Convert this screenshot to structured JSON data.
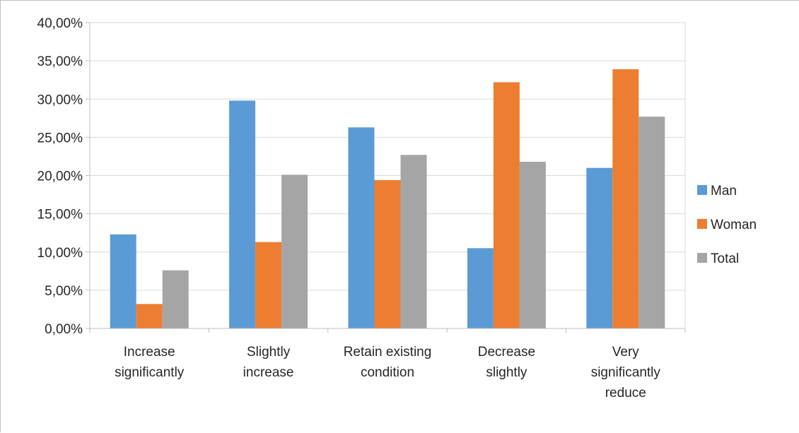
{
  "chart_data": {
    "type": "bar",
    "categories": [
      [
        "Increase",
        "significantly"
      ],
      [
        "Slightly",
        "increase"
      ],
      [
        "Retain existing",
        "condition"
      ],
      [
        "Decrease",
        "slightly"
      ],
      [
        "Very",
        "significantly",
        "reduce"
      ]
    ],
    "series": [
      {
        "name": "Man",
        "color": "#5b9bd5",
        "values": [
          12.3,
          29.8,
          26.3,
          10.5,
          21.0
        ]
      },
      {
        "name": "Woman",
        "color": "#ed7d31",
        "values": [
          3.2,
          11.3,
          19.4,
          32.2,
          33.9
        ]
      },
      {
        "name": "Total",
        "color": "#a5a5a5",
        "values": [
          7.6,
          20.1,
          22.7,
          21.8,
          27.7
        ]
      }
    ],
    "ylim": [
      0,
      40
    ],
    "ytick_step": 5,
    "ytick_labels": [
      "0,00%",
      "5,00%",
      "10,00%",
      "15,00%",
      "20,00%",
      "25,00%",
      "30,00%",
      "35,00%",
      "40,00%"
    ],
    "grid": true,
    "legend": "right",
    "title": "",
    "xlabel": "",
    "ylabel": ""
  }
}
